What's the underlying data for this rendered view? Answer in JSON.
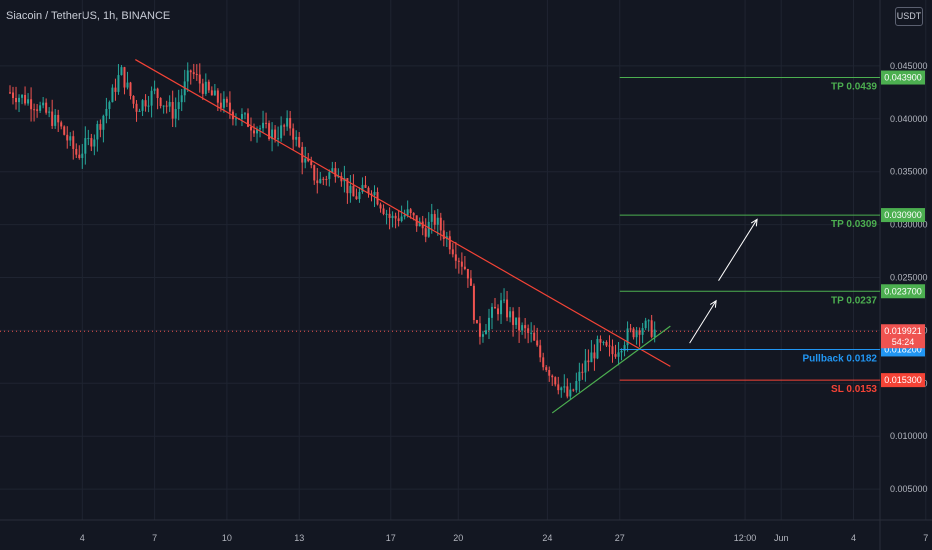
{
  "header": {
    "symbol_title": "Siacoin / TetherUS, 1h, BINANCE",
    "currency_button": "USDT"
  },
  "colors": {
    "background": "#131722",
    "grid": "#1f2431",
    "up": "#26a69a",
    "down": "#ef5350",
    "target": "#4caf50",
    "pullback": "#2196f3",
    "stop": "#f44336",
    "trendline_down": "#f44336",
    "trendline_up": "#4caf50",
    "axis_text": "#b2b5be"
  },
  "chart_data": {
    "type": "candlestick",
    "title": "Siacoin / TetherUS, 1h, BINANCE",
    "ylim": [
      0.0,
      0.0475
    ],
    "y_ticks": [
      0.005,
      0.01,
      0.015,
      0.02,
      0.025,
      0.03,
      0.035,
      0.04,
      0.045
    ],
    "y_tick_labels": [
      "0.005000",
      "0.010000",
      "0.015000",
      "0.020000",
      "0.025000",
      "0.030000",
      "0.035000",
      "0.040000",
      "0.045000"
    ],
    "x_tick_labels": [
      "4",
      "7",
      "10",
      "13",
      "17",
      "20",
      "24",
      "27",
      "12:00",
      "Jun",
      "4",
      "7"
    ],
    "x_ticks_day": [
      3.0,
      6.0,
      9.0,
      12.0,
      15.8,
      18.6,
      22.3,
      25.3,
      30.5,
      32.0,
      35.0,
      38.0
    ],
    "x_range_day": [
      0,
      41.5
    ],
    "price_path": [
      [
        0,
        0.0425
      ],
      [
        1.0,
        0.0415
      ],
      [
        2.0,
        0.0395
      ],
      [
        2.8,
        0.0365
      ],
      [
        3.5,
        0.0385
      ],
      [
        4.2,
        0.042
      ],
      [
        4.6,
        0.0445
      ],
      [
        5.2,
        0.041
      ],
      [
        6.0,
        0.0425
      ],
      [
        6.8,
        0.0405
      ],
      [
        7.5,
        0.0445
      ],
      [
        8.2,
        0.0425
      ],
      [
        9.0,
        0.041
      ],
      [
        10.0,
        0.0395
      ],
      [
        11.0,
        0.0385
      ],
      [
        11.6,
        0.0395
      ],
      [
        12.2,
        0.036
      ],
      [
        12.8,
        0.034
      ],
      [
        13.6,
        0.0355
      ],
      [
        14.2,
        0.0325
      ],
      [
        15.0,
        0.0335
      ],
      [
        15.8,
        0.0305
      ],
      [
        16.5,
        0.031
      ],
      [
        17.2,
        0.0295
      ],
      [
        17.6,
        0.0305
      ],
      [
        18.2,
        0.0285
      ],
      [
        18.6,
        0.027
      ],
      [
        19.0,
        0.0255
      ],
      [
        19.4,
        0.0195
      ],
      [
        20.0,
        0.0215
      ],
      [
        20.4,
        0.0225
      ],
      [
        21.0,
        0.0205
      ],
      [
        21.6,
        0.0195
      ],
      [
        22.0,
        0.0175
      ],
      [
        22.6,
        0.0155
      ],
      [
        23.2,
        0.0135
      ],
      [
        23.8,
        0.0165
      ],
      [
        24.4,
        0.0185
      ],
      [
        25.0,
        0.0178
      ],
      [
        25.6,
        0.0195
      ],
      [
        26.2,
        0.0205
      ],
      [
        26.8,
        0.0199
      ]
    ],
    "trendlines": [
      {
        "name": "descending resistance",
        "from": [
          5.2,
          0.0456
        ],
        "to": [
          27.4,
          0.0166
        ]
      },
      {
        "name": "ascending support",
        "from": [
          22.5,
          0.0122
        ],
        "to": [
          27.4,
          0.0204
        ]
      }
    ],
    "levels": [
      {
        "label": "TP 0.0439",
        "value": 0.0439,
        "axis_label": "0.043900",
        "kind": "target"
      },
      {
        "label": "TP 0.0309",
        "value": 0.0309,
        "axis_label": "0.030900",
        "kind": "target"
      },
      {
        "label": "TP 0.0237",
        "value": 0.0237,
        "axis_label": "0.023700",
        "kind": "target"
      },
      {
        "label": "Pullback 0.0182",
        "value": 0.0182,
        "axis_label": "0.018200",
        "kind": "pullback"
      },
      {
        "label": "SL 0.0153",
        "value": 0.0153,
        "axis_label": "0.015300",
        "kind": "stop"
      }
    ],
    "current_price": {
      "value": 0.019921,
      "axis_label": "0.019921",
      "countdown": "54:24"
    },
    "arrows": [
      {
        "from": [
          28.2,
          0.0188
        ],
        "to": [
          29.3,
          0.0228
        ]
      },
      {
        "from": [
          29.4,
          0.0247
        ],
        "to": [
          31.0,
          0.0305
        ]
      }
    ]
  }
}
